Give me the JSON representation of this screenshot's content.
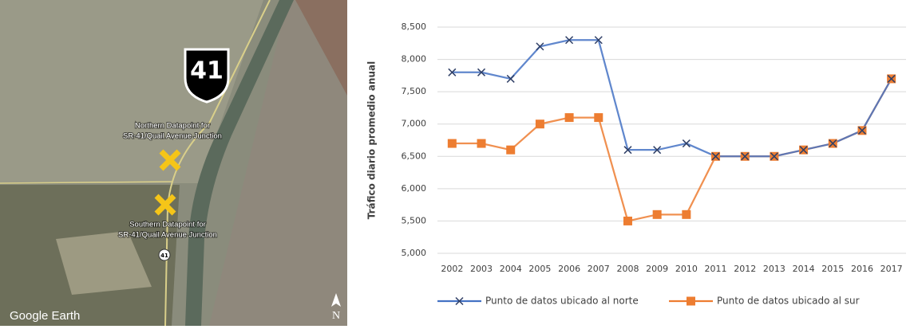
{
  "map": {
    "shield": "41",
    "north_label": [
      "Northern Datapoint for",
      "SR-41/Quail Avenue Junction"
    ],
    "south_label": [
      "Southern Datapoint for",
      "SR-41/Quail Avenue Junction"
    ],
    "route_marker": "41",
    "credit": "Google Earth",
    "compass": "N"
  },
  "chart_data": {
    "type": "line",
    "y_label": "Tráfico diario promedio anual",
    "categories": [
      "2002",
      "2003",
      "2004",
      "2005",
      "2006",
      "2007",
      "2008",
      "2009",
      "2010",
      "2011",
      "2012",
      "2013",
      "2014",
      "2015",
      "2016",
      "2017"
    ],
    "series": [
      {
        "name": "Punto de datos ubicado al norte",
        "color": "#4472c4",
        "marker": "x",
        "values": [
          7800,
          7800,
          7700,
          8200,
          8300,
          8300,
          6600,
          6600,
          6700,
          6500,
          6500,
          6500,
          6600,
          6700,
          6900,
          7700
        ]
      },
      {
        "name": "Punto de datos ubicado al sur",
        "color": "#ed7d31",
        "marker": "square",
        "values": [
          6700,
          6700,
          6600,
          7000,
          7100,
          7100,
          5500,
          5600,
          5600,
          6500,
          6500,
          6500,
          6600,
          6700,
          6900,
          7700
        ]
      }
    ],
    "ylim": [
      5000,
      8500
    ],
    "yticks": [
      {
        "value": 5000,
        "label": "5,000"
      },
      {
        "value": 5500,
        "label": "5,500"
      },
      {
        "value": 6000,
        "label": "6,000"
      },
      {
        "value": 6500,
        "label": "6,500"
      },
      {
        "value": 7000,
        "label": "7,000"
      },
      {
        "value": 7500,
        "label": "7,500"
      },
      {
        "value": 8000,
        "label": "8,000"
      },
      {
        "value": 8500,
        "label": "8,500"
      }
    ],
    "grid": true,
    "legend": "bottom"
  }
}
